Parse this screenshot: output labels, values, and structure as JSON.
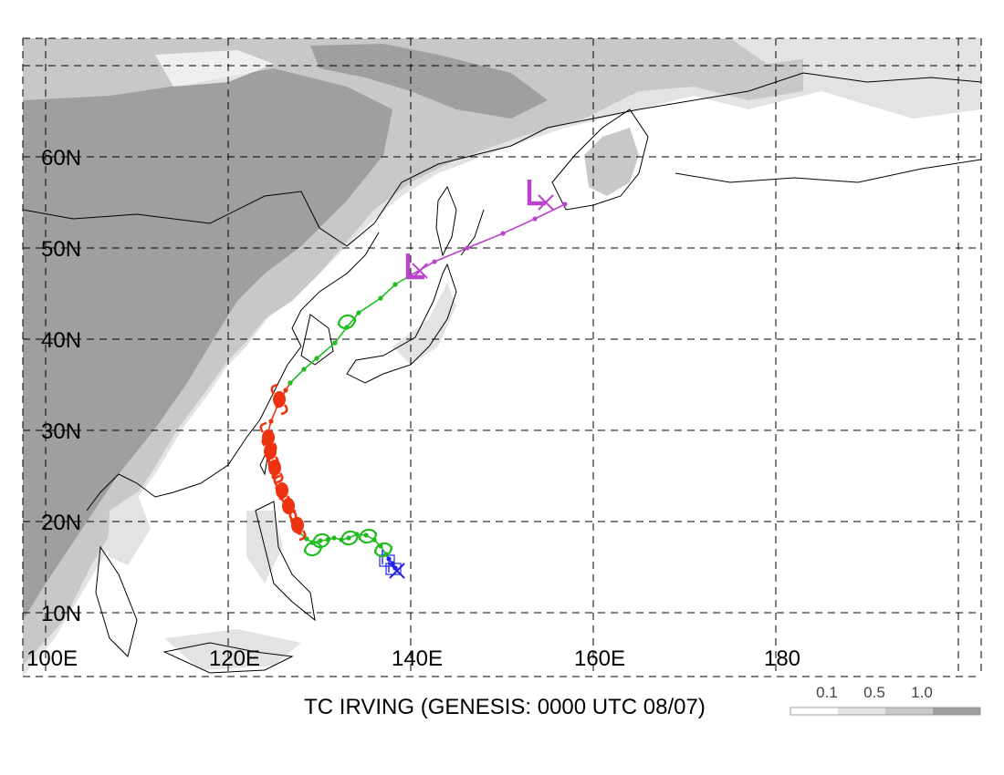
{
  "title": "TC IRVING (GENESIS: 0000 UTC 08/07)",
  "lat_labels": [
    "10N",
    "20N",
    "30N",
    "40N",
    "50N",
    "60N"
  ],
  "lon_labels": [
    "100E",
    "120E",
    "140E",
    "160E",
    "180"
  ],
  "legend": {
    "labels": [
      "0.1",
      "0.5",
      "1.0"
    ],
    "colors": [
      "#ffffff",
      "#e3e3e3",
      "#c8c8c8",
      "#9f9f9f"
    ]
  },
  "colors": {
    "depression": "#2222ee",
    "storm": "#22bb22",
    "typhoon": "#ee3311",
    "extratropical": "#bb44cc",
    "grid": "#000000"
  },
  "track": [
    {
      "stage": "depression",
      "points": [
        [
          138.3,
          14.9
        ],
        [
          138.0,
          15.4
        ],
        [
          137.6,
          15.9
        ],
        [
          137.3,
          16.4
        ]
      ]
    },
    {
      "stage": "storm",
      "points": [
        [
          137.3,
          16.4
        ],
        [
          136.7,
          17.3
        ],
        [
          136.0,
          18.0
        ],
        [
          135.1,
          18.5
        ],
        [
          134.1,
          18.6
        ],
        [
          133.2,
          18.2
        ],
        [
          132.4,
          18.0
        ],
        [
          131.6,
          18.2
        ],
        [
          130.9,
          18.0
        ],
        [
          130.1,
          17.9
        ],
        [
          129.2,
          17.7
        ],
        [
          128.6,
          18.1
        ],
        [
          127.8,
          18.8
        ]
      ]
    },
    {
      "stage": "typhoon",
      "points": [
        [
          127.8,
          18.8
        ],
        [
          127.1,
          20.0
        ],
        [
          126.4,
          21.4
        ],
        [
          125.8,
          22.6
        ],
        [
          125.4,
          23.7
        ],
        [
          125.0,
          24.9
        ],
        [
          124.6,
          26.3
        ],
        [
          124.4,
          27.6
        ],
        [
          124.2,
          29.2
        ],
        [
          124.7,
          31.0
        ],
        [
          125.4,
          32.7
        ],
        [
          126.3,
          34.4
        ],
        [
          126.8,
          35.2
        ]
      ]
    },
    {
      "stage": "storm",
      "points": [
        [
          126.8,
          35.2
        ],
        [
          128.3,
          36.7
        ],
        [
          129.7,
          37.9
        ],
        [
          131.7,
          39.6
        ],
        [
          133.0,
          41.3
        ],
        [
          134.3,
          42.9
        ],
        [
          136.7,
          44.5
        ],
        [
          138.3,
          46.0
        ],
        [
          139.8,
          46.9
        ]
      ]
    },
    {
      "stage": "extratropical",
      "points": [
        [
          139.8,
          46.9
        ],
        [
          142.6,
          48.5
        ],
        [
          146.2,
          50.0
        ],
        [
          150.1,
          51.6
        ],
        [
          153.6,
          53.2
        ],
        [
          156.9,
          54.8
        ]
      ]
    }
  ],
  "symbols": [
    {
      "type": "depression",
      "lon": 138.1,
      "lat": 15.2
    },
    {
      "type": "depression",
      "lon": 137.4,
      "lat": 16.1
    },
    {
      "type": "storm",
      "lon": 137.0,
      "lat": 16.9
    },
    {
      "type": "storm",
      "lon": 135.3,
      "lat": 18.4
    },
    {
      "type": "storm",
      "lon": 133.3,
      "lat": 18.2
    },
    {
      "type": "storm",
      "lon": 130.2,
      "lat": 17.9
    },
    {
      "type": "storm",
      "lon": 129.3,
      "lat": 17.0
    },
    {
      "type": "typhoon",
      "lon": 127.6,
      "lat": 19.6
    },
    {
      "type": "typhoon",
      "lon": 126.6,
      "lat": 21.7
    },
    {
      "type": "typhoon",
      "lon": 125.9,
      "lat": 23.4
    },
    {
      "type": "typhoon",
      "lon": 125.1,
      "lat": 25.9
    },
    {
      "type": "typhoon",
      "lon": 124.6,
      "lat": 27.7
    },
    {
      "type": "typhoon",
      "lon": 124.4,
      "lat": 29.2
    },
    {
      "type": "typhoon",
      "lon": 125.6,
      "lat": 33.4
    },
    {
      "type": "storm",
      "lon": 133.0,
      "lat": 41.9
    },
    {
      "type": "extratropical",
      "lon": 140.3,
      "lat": 47.8
    },
    {
      "type": "extratropical",
      "lon": 153.6,
      "lat": 55.9
    }
  ],
  "end_markers": [
    {
      "stage": "depression",
      "lon": 138.5,
      "lat": 14.6
    },
    {
      "stage": "extratropical",
      "lon": 141.0,
      "lat": 47.5
    },
    {
      "stage": "extratropical",
      "lon": 154.8,
      "lat": 55.0
    }
  ]
}
